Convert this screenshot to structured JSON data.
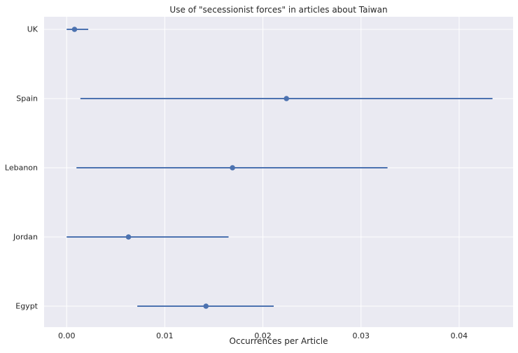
{
  "chart_data": {
    "type": "scatter",
    "subtype": "point-with-confidence-interval",
    "title": "Use of \"secessionist forces\" in articles about Taiwan",
    "xlabel": "Occurrences per Article",
    "ylabel": "",
    "categories": [
      "UK",
      "Spain",
      "Lebanon",
      "Jordan",
      "Egypt"
    ],
    "points": [
      {
        "category": "UK",
        "value": 0.0008,
        "ci_low": 0.0,
        "ci_high": 0.0022
      },
      {
        "category": "Spain",
        "value": 0.0224,
        "ci_low": 0.0014,
        "ci_high": 0.0434
      },
      {
        "category": "Lebanon",
        "value": 0.0169,
        "ci_low": 0.001,
        "ci_high": 0.0327
      },
      {
        "category": "Jordan",
        "value": 0.0063,
        "ci_low": 0.0,
        "ci_high": 0.0165
      },
      {
        "category": "Egypt",
        "value": 0.0142,
        "ci_low": 0.0072,
        "ci_high": 0.0211
      }
    ],
    "xlim": [
      -0.0023,
      0.0455
    ],
    "xticks": [
      0.0,
      0.01,
      0.02,
      0.03,
      0.04
    ],
    "xtick_labels": [
      "0.00",
      "0.01",
      "0.02",
      "0.03",
      "0.04"
    ],
    "grid": true,
    "legend": "none",
    "colors": {
      "background": "#eaeaf2",
      "grid": "#ffffff",
      "series": "#4c72b0"
    }
  }
}
